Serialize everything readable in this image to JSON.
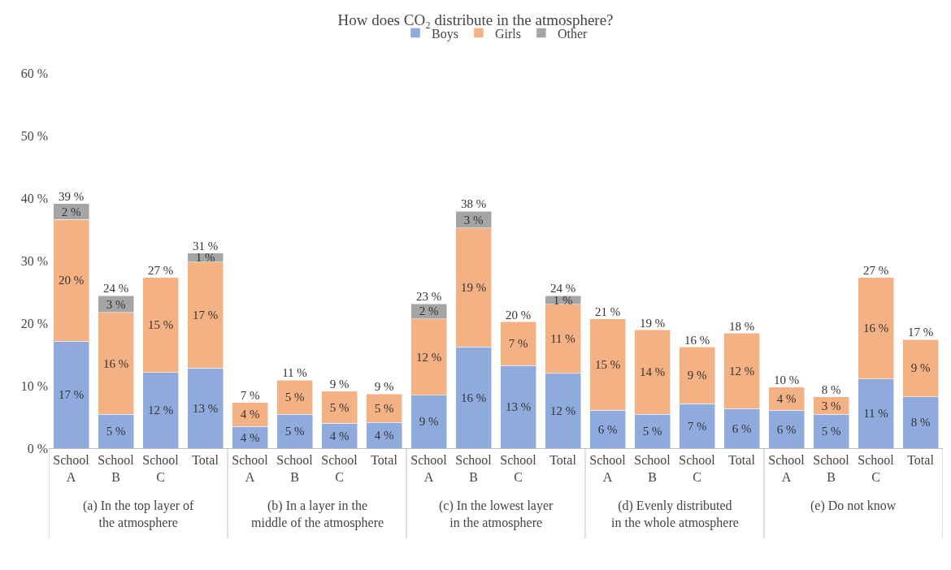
{
  "chart_data": {
    "type": "bar",
    "stacked": true,
    "title": "How does CO₂ distribute in the atmosphere?",
    "categories": [
      "School A",
      "School B",
      "School C",
      "Total",
      "School A",
      "School B",
      "School C",
      "Total",
      "School A",
      "School B",
      "School C",
      "Total",
      "School A",
      "School B",
      "School C",
      "Total",
      "School A",
      "School B",
      "School C",
      "Total"
    ],
    "series": [
      {
        "name": "Boys",
        "color": "#8faadc",
        "values": [
          17.1,
          5.4,
          12.1,
          12.8,
          3.5,
          5.4,
          4.0,
          4.1,
          8.5,
          16.2,
          13.2,
          12.0,
          6.1,
          5.4,
          7.1,
          6.3,
          6.1,
          5.4,
          11.1,
          8.2
        ],
        "value_labels": [
          "17 %",
          "5 %",
          "12 %",
          "13 %",
          "4 %",
          "5 %",
          "4 %",
          "4 %",
          "9 %",
          "16 %",
          "13 %",
          "12 %",
          "6 %",
          "5 %",
          "7 %",
          "6 %",
          "6 %",
          "5 %",
          "11 %",
          "8 %"
        ]
      },
      {
        "name": "Girls",
        "color": "#f4b183",
        "values": [
          19.5,
          16.3,
          15.2,
          17.0,
          3.8,
          5.5,
          5.1,
          4.6,
          12.2,
          19.0,
          7.0,
          11.0,
          14.6,
          13.5,
          9.1,
          12.1,
          3.7,
          2.8,
          16.2,
          9.2
        ],
        "value_labels": [
          "20 %",
          "16 %",
          "15 %",
          "17 %",
          "4 %",
          "5 %",
          "5 %",
          "5 %",
          "12 %",
          "19 %",
          "7 %",
          "11 %",
          "15 %",
          "14 %",
          "9 %",
          "12 %",
          "4 %",
          "3 %",
          "16 %",
          "9 %"
        ]
      },
      {
        "name": "Other",
        "color": "#a5a5a5",
        "values": [
          2.5,
          2.7,
          null,
          1.4,
          null,
          null,
          null,
          null,
          2.4,
          2.7,
          null,
          1.4,
          null,
          null,
          null,
          null,
          null,
          null,
          null,
          null
        ],
        "value_labels": [
          "2 %",
          "3 %",
          null,
          "1 %",
          null,
          null,
          null,
          null,
          "2 %",
          "3 %",
          null,
          "1 %",
          null,
          null,
          null,
          null,
          null,
          null,
          null,
          null
        ]
      }
    ],
    "totals": [
      "39 %",
      "24 %",
      "27 %",
      "31 %",
      "7 %",
      "11 %",
      "9 %",
      "9 %",
      "23 %",
      "38 %",
      "20 %",
      "24 %",
      "21 %",
      "19 %",
      "16 %",
      "18 %",
      "10 %",
      "8 %",
      "27 %",
      "17 %"
    ],
    "annotations": [
      "(a) In the top layer of the atmosphere",
      "(b) In a layer in the middle of the atmosphere",
      "(c) In the lowest layer in the atmosphere",
      "(d) Evenly distributed in the whole atmosphere",
      "(e) Do not know"
    ],
    "ylim": [
      0,
      60
    ],
    "yticks": [
      {
        "value": 0,
        "label": "0 %"
      },
      {
        "value": 10,
        "label": "10 %"
      },
      {
        "value": 20,
        "label": "20 %"
      },
      {
        "value": 30,
        "label": "30 %"
      },
      {
        "value": 40,
        "label": "40 %"
      },
      {
        "value": 50,
        "label": "50 %"
      },
      {
        "value": 60,
        "label": "60 %"
      }
    ],
    "legend": "top"
  }
}
